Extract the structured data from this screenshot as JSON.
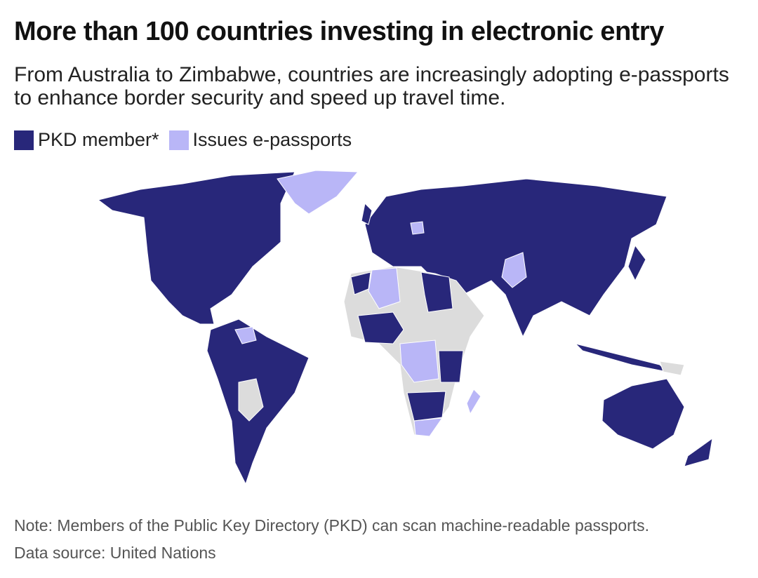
{
  "header": {
    "title": "More than 100 countries investing in electronic entry",
    "subtitle": "From Australia to Zimbabwe, countries are increasingly adopting e-passports to enhance border security and speed up travel time."
  },
  "legend": {
    "items": [
      {
        "label": "PKD member*",
        "color": "#28277a"
      },
      {
        "label": "Issues e-passports",
        "color": "#b9b6f7"
      }
    ]
  },
  "footer": {
    "note": "Note: Members of the Public Key Directory (PKD) can scan machine-readable passports.",
    "source": "Data source: United Nations"
  }
}
